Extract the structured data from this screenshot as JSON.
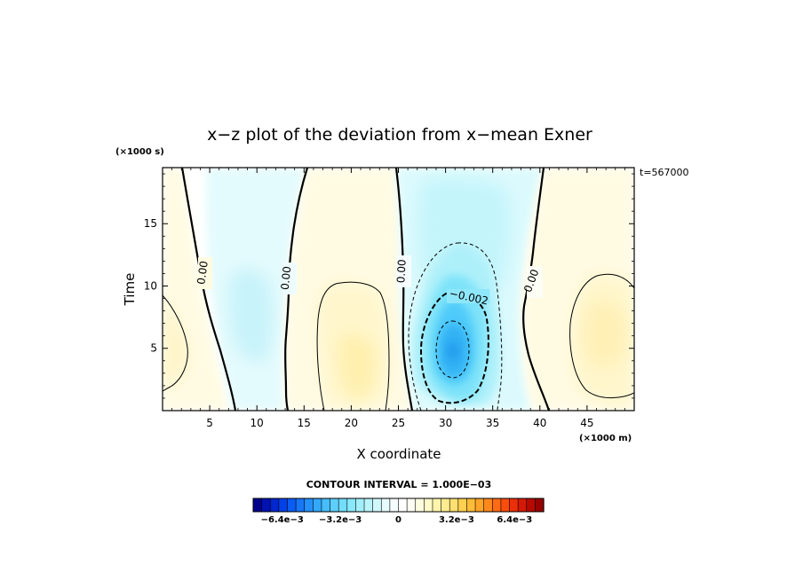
{
  "chart_data": {
    "type": "heatmap",
    "title": "x−z plot of the deviation from x−mean Exner",
    "xlabel": "X coordinate",
    "ylabel": "Time",
    "x_unit": "(×1000 m)",
    "y_unit": "(×1000 s)",
    "time_stamp": "t=567000",
    "xlim": [
      0,
      50
    ],
    "ylim": [
      0,
      19.5
    ],
    "x_ticks": [
      5,
      10,
      15,
      20,
      25,
      30,
      35,
      40,
      45
    ],
    "y_ticks": [
      5,
      10,
      15
    ],
    "contour_labels": [
      {
        "text": "0.00",
        "x": 4.2,
        "y": 11.3
      },
      {
        "text": "0.00",
        "x": 13.2,
        "y": 10.6
      },
      {
        "text": "0.00",
        "x": 25.2,
        "y": 11.6
      },
      {
        "text": "−0.002",
        "x": 31.4,
        "y": 9.2
      },
      {
        "text": "0.00",
        "x": 39.5,
        "y": 10.6
      }
    ],
    "features": [
      {
        "kind": "minimum",
        "x": 30.6,
        "y": 5.0,
        "value": -0.0055
      },
      {
        "kind": "positive_lobe",
        "x": 2.0,
        "y": 5.0,
        "value": 0.001
      },
      {
        "kind": "positive_lobe",
        "x": 20.5,
        "y": 4.8,
        "value": 0.0018
      },
      {
        "kind": "positive_lobe",
        "x": 46.5,
        "y": 6.5,
        "value": 0.0012
      },
      {
        "kind": "negative_lobe",
        "x": 10.0,
        "y": 10.0,
        "value": -0.0008
      }
    ],
    "contour_interval_text": "CONTOUR INTERVAL = 1.000E−03",
    "colorbar": {
      "min": -0.008,
      "max": 0.008,
      "tick_labels": [
        "−6.4e−3",
        "−3.2e−3",
        "0",
        "3.2e−3",
        "6.4e−3"
      ],
      "tick_values": [
        -0.0064,
        -0.0032,
        0,
        0.0032,
        0.0064
      ],
      "colors": [
        "#00008f",
        "#0012b0",
        "#0026d0",
        "#0040e8",
        "#0a5cf2",
        "#1776f8",
        "#2590fc",
        "#33a8fe",
        "#46bdff",
        "#5ccffe",
        "#72ddfd",
        "#8ae8fb",
        "#a2effb",
        "#baf4fb",
        "#d0f8fc",
        "#e6fbfd",
        "#f6fdfe",
        "#ffffff",
        "#fffff4",
        "#fffde0",
        "#fffac8",
        "#fff4ac",
        "#ffec90",
        "#ffe070",
        "#ffd050",
        "#ffbc38",
        "#ffa428",
        "#ff881c",
        "#ff6a14",
        "#fa4c0c",
        "#ea3008",
        "#d41a04",
        "#b80a02",
        "#980000"
      ]
    }
  }
}
